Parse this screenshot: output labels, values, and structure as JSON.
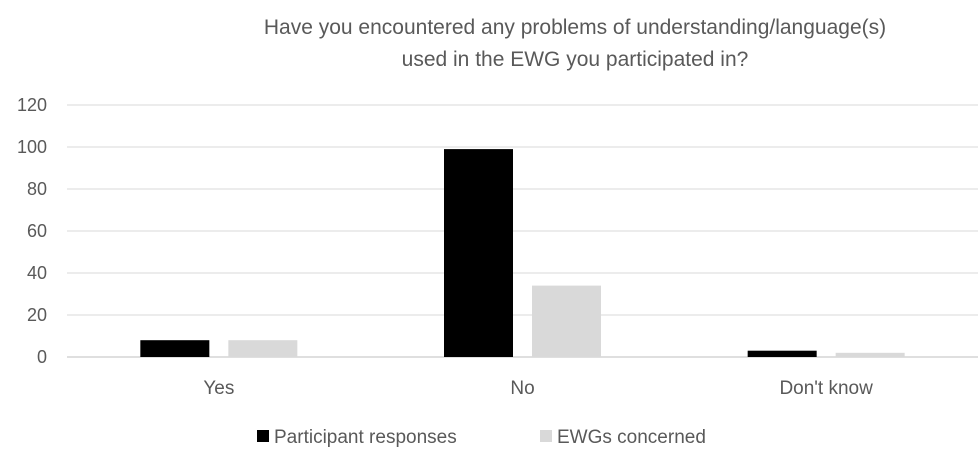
{
  "chart_data": {
    "type": "bar",
    "title_lines": [
      "Have you encountered any problems of understanding/language(s)",
      "used in the EWG you participated in?"
    ],
    "categories": [
      "Yes",
      "No",
      "Don't know"
    ],
    "series": [
      {
        "name": "Participant responses",
        "color": "#000000",
        "values": [
          8,
          99,
          3
        ]
      },
      {
        "name": "EWGs concerned",
        "color": "#d9d9d9",
        "values": [
          8,
          34,
          2
        ]
      }
    ],
    "ylim": [
      0,
      120
    ],
    "yticks": [
      0,
      20,
      40,
      60,
      80,
      100,
      120
    ],
    "grid": true,
    "legend_position": "bottom"
  }
}
